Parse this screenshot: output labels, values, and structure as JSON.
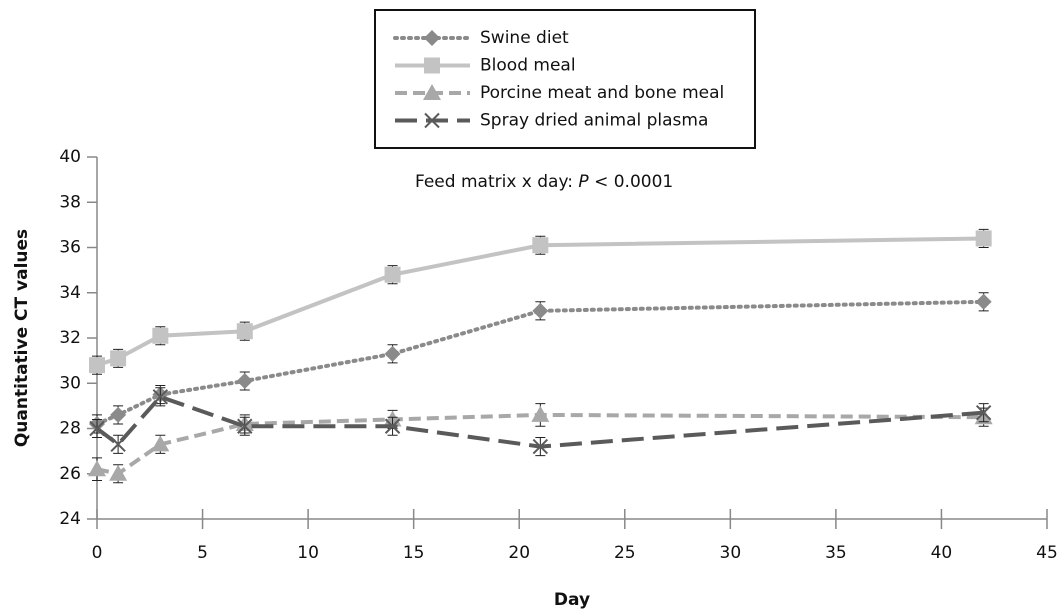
{
  "chart_data": {
    "type": "line",
    "x_label": "Day",
    "y_label": "Quantitative CT values",
    "annotation": {
      "parts": [
        "Feed matrix x day: ",
        "P",
        " < 0.0001"
      ]
    },
    "x": [
      0,
      1,
      3,
      7,
      14,
      21,
      42
    ],
    "xlim": [
      0,
      45
    ],
    "xticks": [
      0,
      5,
      10,
      15,
      20,
      25,
      30,
      35,
      40,
      45
    ],
    "ylim": [
      24,
      40
    ],
    "yticks": [
      24,
      26,
      28,
      30,
      32,
      34,
      36,
      38,
      40
    ],
    "grid": false,
    "legend": "top",
    "series": [
      {
        "name": "Swine diet",
        "color": "#8a8a8a",
        "dash": "dotted",
        "marker": "diamond",
        "values": [
          28.2,
          28.6,
          29.5,
          30.1,
          31.3,
          33.2,
          33.6
        ],
        "errors": [
          0.4,
          0.4,
          0.4,
          0.4,
          0.4,
          0.4,
          0.4
        ]
      },
      {
        "name": "Blood meal",
        "color": "#c3c3c3",
        "dash": "solid",
        "marker": "square",
        "values": [
          30.8,
          31.1,
          32.1,
          32.3,
          34.8,
          36.1,
          36.4
        ],
        "errors": [
          0.4,
          0.4,
          0.4,
          0.4,
          0.4,
          0.4,
          0.4
        ]
      },
      {
        "name": "Porcine meat and bone meal",
        "color": "#a8a8a8",
        "dash": "dashed",
        "marker": "triangle",
        "values": [
          26.2,
          26.0,
          27.3,
          28.2,
          28.4,
          28.6,
          28.5
        ],
        "errors": [
          0.5,
          0.4,
          0.4,
          0.4,
          0.4,
          0.5,
          0.4
        ]
      },
      {
        "name": "Spray dried animal plasma",
        "color": "#5a5a5a",
        "dash": "longdash",
        "marker": "x",
        "values": [
          28.0,
          27.3,
          29.4,
          28.1,
          28.1,
          27.2,
          28.7
        ],
        "errors": [
          0.4,
          0.4,
          0.4,
          0.4,
          0.4,
          0.4,
          0.4
        ]
      }
    ]
  }
}
